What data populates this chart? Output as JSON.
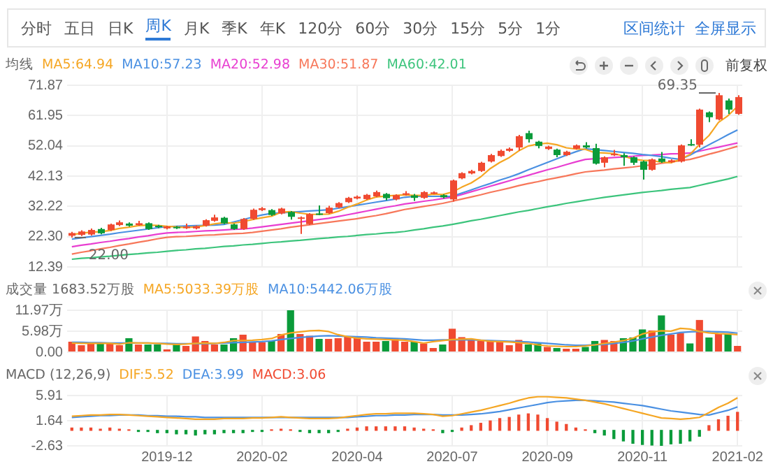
{
  "chart_data": [
    {
      "type": "candlestick",
      "legend_title": "均线",
      "legend": "top left",
      "grid": true,
      "tick_labels": "y",
      "annotations": [
        "分时",
        "五日",
        "日K",
        "周K",
        "月K",
        "季K",
        "年K",
        "120分",
        "60分",
        "30分",
        "15分",
        "5分",
        "1分",
        "区间统计",
        "全屏显示",
        "前复权",
        "69.35",
        "22.00"
      ],
      "categories": [
        null,
        null,
        null,
        null,
        null,
        null,
        null,
        null,
        null,
        null,
        "2019-12",
        null,
        null,
        null,
        null,
        null,
        null,
        null,
        null,
        null,
        "2020-02",
        null,
        null,
        null,
        null,
        null,
        null,
        null,
        null,
        null,
        "2020-04",
        null,
        null,
        null,
        null,
        null,
        null,
        null,
        null,
        null,
        "2020-07",
        null,
        null,
        null,
        null,
        null,
        null,
        null,
        null,
        null,
        "2020-09",
        null,
        null,
        null,
        null,
        null,
        null,
        null,
        null,
        null,
        "2020-11",
        null,
        null,
        null,
        null,
        null,
        null,
        null,
        null,
        null,
        "2021-02"
      ],
      "ylim": [
        12.39,
        71.87
      ],
      "yticks": [
        12.39,
        {
          "value": 22.3,
          "label": "22.30"
        },
        32.22,
        42.13,
        52.04,
        61.95,
        71.87
      ],
      "ohlc": [
        [
          22.6,
          23.9,
          22.0,
          23.5
        ],
        [
          22.9,
          24.4,
          22.5,
          24.0
        ],
        [
          23.0,
          25.0,
          22.7,
          24.5
        ],
        [
          24.8,
          25.2,
          23.1,
          23.4
        ],
        [
          24.5,
          26.6,
          24.2,
          26.3
        ],
        [
          26.1,
          27.6,
          25.8,
          27.0
        ],
        [
          26.6,
          27.0,
          25.6,
          25.9
        ],
        [
          26.1,
          27.5,
          25.9,
          26.7
        ],
        [
          26.7,
          27.0,
          24.5,
          24.8
        ],
        [
          25.9,
          26.2,
          25.1,
          25.4
        ],
        [
          25.0,
          25.9,
          24.7,
          25.6
        ],
        [
          25.5,
          25.8,
          24.8,
          25.1
        ],
        [
          25.1,
          26.6,
          24.8,
          25.6
        ],
        [
          25.0,
          26.0,
          24.7,
          25.7
        ],
        [
          25.9,
          28.0,
          25.6,
          27.7
        ],
        [
          27.5,
          29.5,
          27.2,
          28.6
        ],
        [
          28.5,
          28.8,
          26.4,
          26.7
        ],
        [
          26.3,
          26.6,
          24.5,
          24.8
        ],
        [
          24.8,
          28.4,
          24.5,
          28.1
        ],
        [
          28.1,
          31.5,
          27.8,
          31.1
        ],
        [
          31.0,
          32.0,
          30.7,
          31.6
        ],
        [
          31.0,
          31.3,
          29.1,
          29.4
        ],
        [
          29.9,
          31.8,
          29.6,
          31.5
        ],
        [
          30.4,
          30.7,
          27.9,
          28.8
        ],
        [
          28.4,
          28.9,
          23.2,
          28.6
        ],
        [
          26.4,
          30.0,
          26.1,
          29.7
        ],
        [
          29.9,
          32.5,
          29.3,
          29.6
        ],
        [
          30.0,
          32.4,
          29.7,
          31.8
        ],
        [
          31.9,
          33.6,
          31.6,
          33.3
        ],
        [
          33.6,
          35.3,
          33.3,
          35.0
        ],
        [
          34.8,
          35.8,
          34.5,
          35.4
        ],
        [
          34.6,
          36.3,
          34.3,
          36.0
        ],
        [
          35.5,
          37.4,
          35.2,
          36.9
        ],
        [
          36.3,
          36.6,
          34.2,
          34.9
        ],
        [
          34.5,
          36.2,
          34.2,
          35.9
        ],
        [
          36.3,
          37.2,
          35.7,
          36.5
        ],
        [
          35.8,
          36.3,
          34.0,
          35.0
        ],
        [
          35.0,
          37.2,
          34.7,
          36.9
        ],
        [
          36.6,
          37.1,
          36.2,
          36.8
        ],
        [
          35.9,
          36.2,
          34.8,
          35.2
        ],
        [
          34.5,
          41.0,
          33.8,
          40.7
        ],
        [
          41.4,
          43.4,
          41.1,
          43.1
        ],
        [
          43.0,
          44.2,
          42.7,
          43.8
        ],
        [
          43.8,
          46.8,
          43.5,
          46.5
        ],
        [
          46.9,
          49.4,
          46.6,
          49.0
        ],
        [
          48.7,
          50.8,
          48.4,
          50.4
        ],
        [
          50.4,
          51.5,
          50.1,
          51.1
        ],
        [
          51.5,
          55.6,
          50.5,
          55.2
        ],
        [
          56.2,
          57.0,
          53.1,
          54.2
        ],
        [
          53.4,
          53.7,
          51.2,
          52.0
        ],
        [
          51.0,
          52.1,
          50.7,
          51.8
        ],
        [
          50.8,
          51.1,
          48.3,
          49.0
        ],
        [
          49.0,
          50.4,
          48.7,
          50.1
        ],
        [
          51.1,
          52.5,
          50.8,
          52.2
        ],
        [
          52.2,
          53.2,
          51.2,
          51.5
        ],
        [
          51.3,
          52.7,
          45.9,
          46.2
        ],
        [
          46.5,
          48.6,
          45.0,
          48.3
        ],
        [
          49.0,
          50.7,
          48.7,
          49.4
        ],
        [
          49.0,
          49.6,
          45.5,
          48.3
        ],
        [
          48.3,
          48.6,
          45.8,
          46.5
        ],
        [
          46.9,
          47.2,
          41.0,
          44.2
        ],
        [
          44.2,
          47.9,
          43.9,
          47.6
        ],
        [
          47.9,
          50.0,
          46.5,
          46.8
        ],
        [
          46.7,
          47.6,
          46.4,
          47.3
        ],
        [
          46.9,
          52.5,
          46.6,
          52.2
        ],
        [
          52.6,
          54.2,
          52.0,
          52.3
        ],
        [
          52.4,
          64.2,
          51.5,
          63.9
        ],
        [
          63.0,
          63.3,
          59.8,
          61.4
        ],
        [
          60.7,
          69.35,
          60.4,
          68.6
        ],
        [
          66.9,
          67.5,
          62.5,
          63.9
        ],
        [
          62.5,
          68.6,
          62.2,
          68.0
        ]
      ],
      "colors": [
        "#f04a31",
        "#f04a31",
        "#f04a31",
        "#0a9b3a",
        "#f04a31",
        "#f04a31",
        "#0a9b3a",
        "#f04a31",
        "#0a9b3a",
        "#0a9b3a",
        "#f04a31",
        "#0a9b3a",
        "#f04a31",
        "#f04a31",
        "#f04a31",
        "#f04a31",
        "#0a9b3a",
        "#0a9b3a",
        "#f04a31",
        "#f04a31",
        "#f04a31",
        "#0a9b3a",
        "#f04a31",
        "#0a9b3a",
        "#f04a31",
        "#f04a31",
        "#0a9b3a",
        "#f04a31",
        "#f04a31",
        "#f04a31",
        "#f04a31",
        "#f04a31",
        "#f04a31",
        "#0a9b3a",
        "#f04a31",
        "#f04a31",
        "#0a9b3a",
        "#f04a31",
        "#f04a31",
        "#0a9b3a",
        "#f04a31",
        "#f04a31",
        "#f04a31",
        "#f04a31",
        "#f04a31",
        "#f04a31",
        "#f04a31",
        "#f04a31",
        "#0a9b3a",
        "#0a9b3a",
        "#f04a31",
        "#0a9b3a",
        "#f04a31",
        "#f04a31",
        "#0a9b3a",
        "#0a9b3a",
        "#f04a31",
        "#f04a31",
        "#0a9b3a",
        "#0a9b3a",
        "#0a9b3a",
        "#f04a31",
        "#0a9b3a",
        "#f04a31",
        "#f04a31",
        "#0a9b3a",
        "#f04a31",
        "#0a9b3a",
        "#f04a31",
        "#0a9b3a",
        "#f04a31"
      ],
      "series": [
        {
          "type": "line",
          "name": "MA5:64.94",
          "color": "#f5a623",
          "values": [
            23.0,
            23.4,
            23.8,
            23.9,
            24.3,
            25.0,
            25.4,
            25.9,
            26.1,
            26.0,
            25.7,
            25.5,
            25.3,
            25.5,
            25.9,
            26.5,
            26.9,
            26.7,
            27.2,
            27.9,
            28.5,
            29.0,
            30.3,
            30.5,
            30.0,
            29.6,
            29.6,
            29.7,
            30.6,
            31.9,
            33.0,
            34.3,
            35.3,
            35.6,
            35.8,
            36.0,
            35.8,
            35.8,
            36.2,
            36.1,
            36.9,
            38.5,
            39.9,
            41.9,
            44.6,
            46.6,
            48.2,
            50.4,
            52.0,
            52.6,
            52.9,
            52.4,
            51.4,
            51.0,
            50.9,
            49.8,
            49.7,
            49.5,
            48.7,
            47.7,
            47.3,
            47.2,
            46.7,
            46.5,
            47.6,
            49.2,
            52.5,
            55.4,
            59.7,
            61.9,
            64.94
          ]
        },
        {
          "type": "line",
          "name": "MA10:57.23",
          "color": "#4a90e2",
          "values": [
            21.5,
            21.9,
            22.3,
            22.7,
            23.1,
            23.6,
            24.0,
            24.4,
            24.8,
            25.2,
            25.6,
            25.7,
            25.8,
            25.9,
            26.0,
            26.1,
            26.3,
            27.1,
            27.9,
            28.7,
            29.4,
            29.9,
            30.1,
            30.3,
            30.5,
            30.7,
            30.9,
            31.1,
            31.6,
            32.1,
            32.6,
            33.1,
            33.6,
            34.1,
            34.6,
            35.2,
            35.5,
            35.5,
            35.5,
            35.5,
            35.5,
            36.6,
            37.6,
            38.7,
            39.7,
            40.8,
            41.8,
            42.9,
            44.2,
            45.4,
            46.6,
            47.8,
            49.0,
            50.1,
            51.1,
            50.8,
            50.5,
            50.2,
            49.9,
            49.6,
            49.2,
            48.9,
            48.5,
            48.0,
            47.6,
            49.0,
            50.7,
            52.4,
            54.0,
            55.7,
            57.23
          ]
        },
        {
          "type": "line",
          "name": "MA20:52.98",
          "color": "#e83ed1",
          "values": [
            19.0,
            19.5,
            19.9,
            20.4,
            20.8,
            21.3,
            21.7,
            22.2,
            22.6,
            23.1,
            23.5,
            23.7,
            23.8,
            24.0,
            24.2,
            24.3,
            24.5,
            24.7,
            24.8,
            25.1,
            25.5,
            25.9,
            26.3,
            26.7,
            27.1,
            27.5,
            27.9,
            28.3,
            28.9,
            29.5,
            30.1,
            30.7,
            31.3,
            31.9,
            32.4,
            33.0,
            33.4,
            33.9,
            34.3,
            34.8,
            35.2,
            36.1,
            37.0,
            37.9,
            38.8,
            39.7,
            40.6,
            41.5,
            42.4,
            43.3,
            44.2,
            45.0,
            45.9,
            46.8,
            47.6,
            47.8,
            48.0,
            48.2,
            48.4,
            48.6,
            48.9,
            49.0,
            49.2,
            49.4,
            49.5,
            49.7,
            50.3,
            51.0,
            51.6,
            52.3,
            52.98
          ]
        },
        {
          "type": "line",
          "name": "MA30:51.87",
          "color": "#f7775a",
          "values": [
            16.6,
            17.2,
            17.7,
            18.3,
            18.8,
            19.4,
            19.9,
            20.5,
            21.0,
            21.6,
            22.1,
            22.3,
            22.4,
            22.6,
            22.8,
            22.9,
            23.1,
            23.3,
            23.4,
            23.7,
            24.1,
            24.5,
            24.9,
            25.4,
            25.8,
            26.2,
            26.6,
            27.0,
            27.4,
            27.8,
            28.2,
            28.7,
            29.2,
            29.8,
            30.5,
            31.2,
            31.7,
            32.2,
            32.7,
            33.2,
            33.9,
            34.6,
            35.3,
            36.0,
            36.8,
            37.5,
            38.2,
            39.0,
            39.7,
            40.3,
            41.0,
            41.6,
            42.2,
            42.9,
            43.5,
            43.8,
            44.1,
            44.5,
            44.8,
            45.1,
            45.5,
            45.8,
            46.3,
            46.7,
            47.2,
            47.6,
            48.4,
            49.3,
            50.1,
            51.0,
            51.87
          ]
        },
        {
          "type": "line",
          "name": "MA60:42.01",
          "color": "#3cc47c",
          "values": [
            14.9,
            15.2,
            15.4,
            15.7,
            15.9,
            16.2,
            16.5,
            16.7,
            17.0,
            17.2,
            17.5,
            17.8,
            18.0,
            18.3,
            18.5,
            18.8,
            19.1,
            19.3,
            19.6,
            19.8,
            20.1,
            20.4,
            20.6,
            20.9,
            21.1,
            21.4,
            21.7,
            21.9,
            22.2,
            22.4,
            22.7,
            23.0,
            23.2,
            23.5,
            23.7,
            24.0,
            24.5,
            24.9,
            25.4,
            25.8,
            26.3,
            26.9,
            27.5,
            28.0,
            28.6,
            29.2,
            29.8,
            30.4,
            30.9,
            31.5,
            32.1,
            32.6,
            33.2,
            33.7,
            34.2,
            34.7,
            35.2,
            35.6,
            36.0,
            36.4,
            36.8,
            37.1,
            37.4,
            37.8,
            38.1,
            38.4,
            39.1,
            39.8,
            40.5,
            41.2,
            42.01
          ]
        }
      ]
    },
    {
      "type": "bar",
      "legend_title": "成交量 1683.52万股",
      "legend": "top left",
      "grid": true,
      "tick_labels": "y",
      "categories": [
        null,
        null,
        null,
        null,
        null,
        null,
        null,
        null,
        null,
        null,
        "2019-12",
        null,
        null,
        null,
        null,
        null,
        null,
        null,
        null,
        null,
        "2020-02",
        null,
        null,
        null,
        null,
        null,
        null,
        null,
        null,
        null,
        "2020-04",
        null,
        null,
        null,
        null,
        null,
        null,
        null,
        null,
        null,
        "2020-07",
        null,
        null,
        null,
        null,
        null,
        null,
        null,
        null,
        null,
        "2020-09",
        null,
        null,
        null,
        null,
        null,
        null,
        null,
        null,
        null,
        "2020-11",
        null,
        null,
        null,
        null,
        null,
        null,
        null,
        null,
        null,
        "2021-02"
      ],
      "ylim": [
        0,
        11.97
      ],
      "yticks": [
        {
          "value": 0,
          "label": "0.00"
        },
        {
          "value": 5.98,
          "label": "5.98万"
        },
        {
          "value": 11.97,
          "label": "11.97万"
        }
      ],
      "series": [
        {
          "type": "bar",
          "values": [
            3.0,
            2.0,
            2.5,
            2.5,
            2.5,
            2.0,
            4.0,
            2.2,
            2.2,
            2.2,
            0.8,
            2.5,
            1.8,
            4.5,
            3.2,
            2.2,
            2.2,
            4.0,
            5.0,
            3.0,
            2.8,
            3.2,
            5.2,
            11.97,
            5.2,
            4.7,
            3.8,
            3.8,
            4.0,
            4.5,
            4.5,
            3.0,
            3.0,
            3.2,
            4.0,
            3.0,
            3.0,
            2.5,
            1.2,
            2.2,
            6.7,
            4.3,
            3.7,
            3.3,
            3.2,
            3.0,
            2.0,
            3.5,
            2.2,
            2.5,
            1.5,
            1.2,
            1.0,
            1.0,
            1.5,
            3.2,
            3.5,
            3.2,
            4.0,
            4.2,
            6.5,
            6.2,
            10.5,
            5.0,
            5.5,
            2.5,
            9.2,
            4.2,
            5.2,
            5.2,
            1.8
          ],
          "colors": [
            "#f04a31",
            "#f04a31",
            "#f04a31",
            "#0a9b3a",
            "#f04a31",
            "#f04a31",
            "#0a9b3a",
            "#f04a31",
            "#0a9b3a",
            "#0a9b3a",
            "#f04a31",
            "#0a9b3a",
            "#f04a31",
            "#f04a31",
            "#f04a31",
            "#f04a31",
            "#0a9b3a",
            "#0a9b3a",
            "#f04a31",
            "#f04a31",
            "#f04a31",
            "#0a9b3a",
            "#f04a31",
            "#0a9b3a",
            "#f04a31",
            "#f04a31",
            "#0a9b3a",
            "#f04a31",
            "#f04a31",
            "#f04a31",
            "#f04a31",
            "#f04a31",
            "#f04a31",
            "#0a9b3a",
            "#f04a31",
            "#f04a31",
            "#0a9b3a",
            "#f04a31",
            "#f04a31",
            "#0a9b3a",
            "#f04a31",
            "#f04a31",
            "#f04a31",
            "#f04a31",
            "#f04a31",
            "#f04a31",
            "#f04a31",
            "#f04a31",
            "#0a9b3a",
            "#0a9b3a",
            "#f04a31",
            "#0a9b3a",
            "#f04a31",
            "#f04a31",
            "#0a9b3a",
            "#0a9b3a",
            "#f04a31",
            "#f04a31",
            "#0a9b3a",
            "#0a9b3a",
            "#0a9b3a",
            "#f04a31",
            "#0a9b3a",
            "#f04a31",
            "#f04a31",
            "#0a9b3a",
            "#f04a31",
            "#0a9b3a",
            "#f04a31",
            "#0a9b3a",
            "#f04a31"
          ]
        },
        {
          "type": "line",
          "name": "MA5:5033.39万股",
          "color": "#f5a623",
          "values": [
            2.6,
            2.5,
            2.5,
            2.5,
            2.5,
            2.3,
            2.7,
            2.6,
            2.6,
            2.5,
            2.3,
            2.2,
            2.3,
            2.5,
            2.6,
            2.5,
            2.8,
            3.3,
            3.3,
            3.4,
            3.6,
            3.9,
            4.9,
            5.5,
            5.8,
            6.1,
            6.2,
            5.9,
            5.0,
            4.4,
            4.0,
            3.8,
            3.7,
            3.6,
            3.5,
            3.4,
            3.0,
            2.6,
            3.0,
            3.3,
            3.6,
            3.7,
            3.8,
            3.4,
            3.1,
            3.0,
            2.9,
            2.7,
            2.5,
            2.1,
            1.8,
            1.7,
            1.6,
            1.6,
            1.8,
            2.1,
            2.5,
            2.9,
            3.3,
            4.0,
            5.2,
            5.8,
            6.1,
            6.0,
            6.8,
            6.6,
            5.9,
            5.5,
            5.3,
            5.2,
            5.0
          ]
        },
        {
          "type": "line",
          "name": "MA10:5442.06万股",
          "color": "#4a90e2",
          "values": [
            2.8,
            2.8,
            2.7,
            2.7,
            2.6,
            2.6,
            2.6,
            2.6,
            2.6,
            2.5,
            2.5,
            2.4,
            2.4,
            2.4,
            2.4,
            2.5,
            2.6,
            2.7,
            2.8,
            2.9,
            3.0,
            3.2,
            3.6,
            3.9,
            4.2,
            4.4,
            4.6,
            4.7,
            4.6,
            4.5,
            4.4,
            4.3,
            4.1,
            4.0,
            3.9,
            3.8,
            3.6,
            3.4,
            3.4,
            3.5,
            3.5,
            3.5,
            3.5,
            3.4,
            3.3,
            3.2,
            3.1,
            3.0,
            2.9,
            2.7,
            2.5,
            2.3,
            2.1,
            2.0,
            2.0,
            2.1,
            2.2,
            2.5,
            2.8,
            3.2,
            3.8,
            4.3,
            4.8,
            5.2,
            5.6,
            5.8,
            5.9,
            5.9,
            5.8,
            5.7,
            5.44
          ]
        }
      ]
    },
    {
      "type": "line",
      "legend_title": "MACD (12,26,9)",
      "legend": "top left",
      "grid": true,
      "categories": [
        null,
        null,
        null,
        null,
        null,
        null,
        null,
        null,
        null,
        null,
        "2019-12",
        null,
        null,
        null,
        null,
        null,
        null,
        null,
        null,
        null,
        "2020-02",
        null,
        null,
        null,
        null,
        null,
        null,
        null,
        null,
        null,
        "2020-04",
        null,
        null,
        null,
        null,
        null,
        null,
        null,
        null,
        null,
        "2020-07",
        null,
        null,
        null,
        null,
        null,
        null,
        null,
        null,
        null,
        "2020-09",
        null,
        null,
        null,
        null,
        null,
        null,
        null,
        null,
        null,
        "2020-11",
        null,
        null,
        null,
        null,
        null,
        null,
        null,
        null,
        null,
        "2021-02"
      ],
      "ylim": [
        -2.63,
        5.91
      ],
      "yticks": [
        -2.63,
        1.64,
        5.91
      ],
      "series": [
        {
          "type": "line",
          "name": "DIF:5.52",
          "color": "#f5a623",
          "values": [
            2.4,
            2.5,
            2.6,
            2.6,
            2.7,
            2.7,
            2.6,
            2.5,
            2.4,
            2.3,
            2.2,
            2.1,
            2.0,
            1.9,
            1.9,
            1.9,
            2.0,
            2.0,
            2.0,
            2.1,
            2.1,
            2.2,
            2.3,
            2.2,
            2.1,
            2.0,
            2.0,
            2.0,
            2.1,
            2.3,
            2.5,
            2.7,
            2.8,
            2.8,
            2.9,
            2.9,
            2.9,
            2.8,
            2.7,
            2.4,
            2.5,
            2.8,
            3.1,
            3.4,
            3.8,
            4.2,
            4.6,
            5.1,
            5.5,
            5.7,
            5.7,
            5.6,
            5.5,
            5.3,
            5.1,
            4.8,
            4.5,
            4.1,
            3.7,
            3.3,
            2.9,
            2.5,
            2.1,
            2.0,
            1.9,
            2.0,
            2.2,
            3.0,
            3.9,
            4.6,
            5.52
          ]
        },
        {
          "type": "line",
          "name": "DEA:3.99",
          "color": "#4a90e2",
          "values": [
            2.2,
            2.3,
            2.4,
            2.5,
            2.5,
            2.6,
            2.6,
            2.6,
            2.5,
            2.5,
            2.4,
            2.4,
            2.3,
            2.3,
            2.2,
            2.2,
            2.2,
            2.2,
            2.2,
            2.2,
            2.2,
            2.2,
            2.2,
            2.2,
            2.2,
            2.2,
            2.2,
            2.2,
            2.2,
            2.2,
            2.3,
            2.4,
            2.5,
            2.5,
            2.6,
            2.6,
            2.7,
            2.7,
            2.7,
            2.6,
            2.6,
            2.6,
            2.7,
            2.8,
            3.0,
            3.2,
            3.5,
            3.8,
            4.1,
            4.4,
            4.7,
            4.9,
            5.0,
            5.1,
            5.1,
            5.0,
            4.9,
            4.8,
            4.6,
            4.4,
            4.2,
            3.9,
            3.6,
            3.3,
            3.1,
            2.9,
            2.7,
            2.6,
            3.0,
            3.4,
            3.99
          ]
        },
        {
          "type": "bar",
          "name": "MACD:3.06",
          "values": [
            0.4,
            0.4,
            0.4,
            0.2,
            0.4,
            0.2,
            0.1,
            -0.2,
            -0.2,
            -0.4,
            -0.4,
            -0.6,
            -0.6,
            -0.8,
            -0.6,
            -0.6,
            -0.4,
            -0.4,
            -0.4,
            -0.2,
            -0.2,
            0.1,
            0.2,
            0.1,
            -0.2,
            -0.4,
            -0.4,
            -0.4,
            -0.2,
            0.2,
            0.4,
            0.6,
            0.6,
            0.6,
            0.6,
            0.6,
            0.4,
            0.2,
            0.1,
            -0.4,
            -0.2,
            0.4,
            0.8,
            1.2,
            1.6,
            2.0,
            2.2,
            2.6,
            2.8,
            2.6,
            2.0,
            1.4,
            1.0,
            0.4,
            0.1,
            -0.4,
            -0.8,
            -1.4,
            -1.8,
            -2.2,
            -2.4,
            -2.5,
            -2.6,
            -2.3,
            -2.2,
            -1.8,
            -1.0,
            0.8,
            1.8,
            2.4,
            3.06
          ],
          "colors": [
            "#f04a31",
            "#f04a31",
            "#f04a31",
            "#f04a31",
            "#f04a31",
            "#f04a31",
            "#f04a31",
            "#0a9b3a",
            "#0a9b3a",
            "#0a9b3a",
            "#0a9b3a",
            "#0a9b3a",
            "#0a9b3a",
            "#0a9b3a",
            "#0a9b3a",
            "#0a9b3a",
            "#0a9b3a",
            "#0a9b3a",
            "#0a9b3a",
            "#0a9b3a",
            "#0a9b3a",
            "#f04a31",
            "#f04a31",
            "#f04a31",
            "#0a9b3a",
            "#0a9b3a",
            "#0a9b3a",
            "#0a9b3a",
            "#0a9b3a",
            "#f04a31",
            "#f04a31",
            "#f04a31",
            "#f04a31",
            "#f04a31",
            "#f04a31",
            "#f04a31",
            "#f04a31",
            "#f04a31",
            "#f04a31",
            "#0a9b3a",
            "#0a9b3a",
            "#f04a31",
            "#f04a31",
            "#f04a31",
            "#f04a31",
            "#f04a31",
            "#f04a31",
            "#f04a31",
            "#f04a31",
            "#f04a31",
            "#f04a31",
            "#f04a31",
            "#f04a31",
            "#f04a31",
            "#f04a31",
            "#0a9b3a",
            "#0a9b3a",
            "#0a9b3a",
            "#0a9b3a",
            "#0a9b3a",
            "#0a9b3a",
            "#0a9b3a",
            "#0a9b3a",
            "#0a9b3a",
            "#0a9b3a",
            "#0a9b3a",
            "#0a9b3a",
            "#f04a31",
            "#f04a31",
            "#f04a31",
            "#f04a31"
          ]
        }
      ]
    }
  ]
}
